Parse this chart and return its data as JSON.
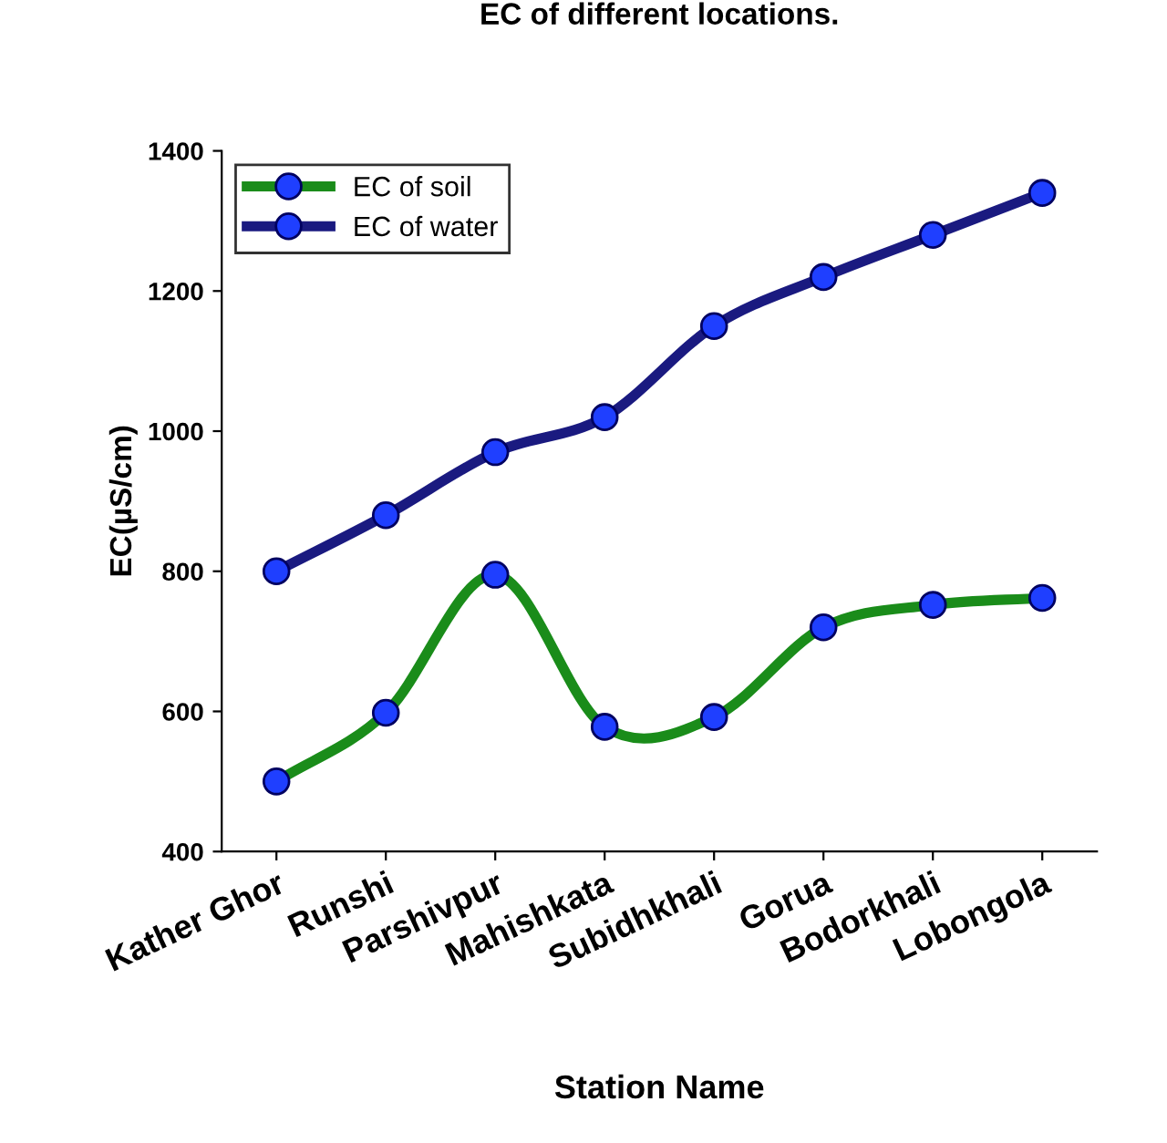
{
  "chart_data": {
    "type": "line",
    "title": "EC of different locations.",
    "xlabel": "Station Name",
    "ylabel": "EC(µS/cm)",
    "categories": [
      "Kather Ghor",
      "Runshi",
      "Parshivpur",
      "Mahishkata",
      "Subidhkhali",
      "Gorua",
      "Bodorkhali",
      "Lobongola"
    ],
    "series": [
      {
        "name": "EC of soil",
        "color": "#1a8c1a",
        "values": [
          500,
          598,
          795,
          578,
          592,
          720,
          752,
          762
        ]
      },
      {
        "name": "EC of water",
        "color": "#1a1a80",
        "values": [
          800,
          880,
          970,
          1020,
          1150,
          1220,
          1280,
          1340
        ]
      }
    ],
    "ylim": [
      400,
      1400
    ],
    "yticks": [
      400,
      600,
      800,
      1000,
      1200,
      1400
    ],
    "grid": false,
    "legend": "top left",
    "marker": "circle",
    "line_style": "solid"
  }
}
